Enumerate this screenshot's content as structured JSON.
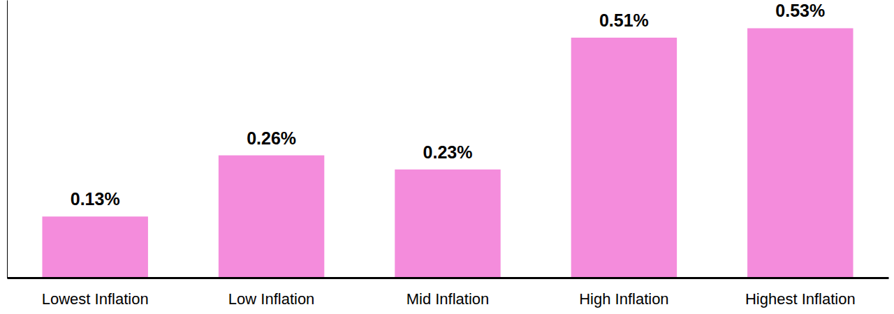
{
  "chart_data": {
    "type": "bar",
    "categories": [
      "Lowest Inflation",
      "Low Inflation",
      "Mid Inflation",
      "High Inflation",
      "Highest Inflation"
    ],
    "values": [
      0.13,
      0.26,
      0.23,
      0.51,
      0.53
    ],
    "value_labels": [
      "0.13%",
      "0.26%",
      "0.23%",
      "0.51%",
      "0.53%"
    ],
    "color": "#f48cdc",
    "ylim": [
      0,
      0.59
    ],
    "data_labels": true,
    "tick_labels": "x"
  }
}
